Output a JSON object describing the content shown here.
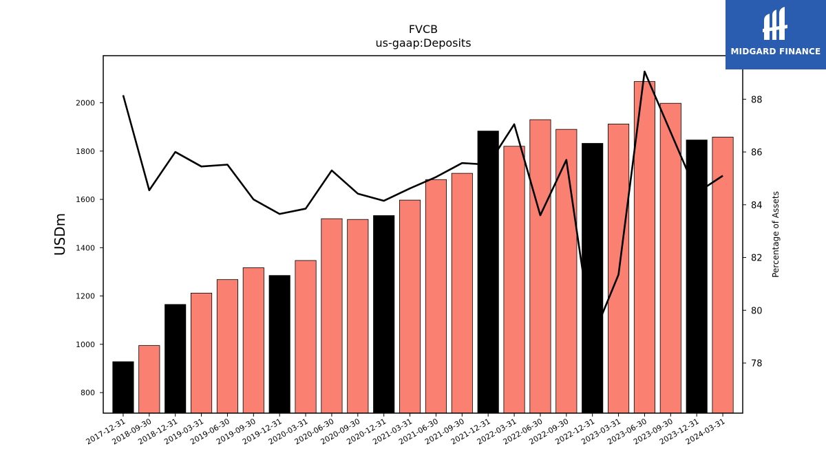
{
  "chart_data": {
    "type": "bar",
    "title": "FVCB",
    "subtitle": "us-gaap:Deposits",
    "ylabel": "USDm",
    "ylabel_right": "Percentage of Assets",
    "categories": [
      "2017-12-31",
      "2018-09-30",
      "2018-12-31",
      "2019-03-31",
      "2019-06-30",
      "2019-09-30",
      "2019-12-31",
      "2020-03-31",
      "2020-06-30",
      "2020-09-30",
      "2020-12-31",
      "2021-03-31",
      "2021-06-30",
      "2021-09-30",
      "2021-12-31",
      "2022-03-31",
      "2022-06-30",
      "2022-09-30",
      "2022-12-31",
      "2023-03-31",
      "2023-06-30",
      "2023-09-30",
      "2023-12-31",
      "2024-03-31"
    ],
    "series": [
      {
        "type": "bar",
        "axis": "left",
        "values": [
          928,
          995,
          1165,
          1212,
          1268,
          1317,
          1285,
          1347,
          1520,
          1517,
          1533,
          1597,
          1682,
          1708,
          1883,
          1820,
          1930,
          1890,
          1832,
          1912,
          2088,
          1998,
          1846,
          1858
        ],
        "colors": [
          "#000000",
          "#fa8072",
          "#000000",
          "#fa8072",
          "#fa8072",
          "#fa8072",
          "#000000",
          "#fa8072",
          "#fa8072",
          "#fa8072",
          "#000000",
          "#fa8072",
          "#fa8072",
          "#fa8072",
          "#000000",
          "#fa8072",
          "#fa8072",
          "#fa8072",
          "#000000",
          "#fa8072",
          "#fa8072",
          "#fa8072",
          "#000000",
          "#fa8072"
        ]
      },
      {
        "type": "line",
        "axis": "right",
        "color": "#000000",
        "values": [
          88.15,
          84.55,
          86.0,
          85.45,
          85.52,
          84.2,
          83.65,
          83.85,
          85.3,
          84.42,
          84.15,
          84.62,
          85.05,
          85.58,
          85.52,
          87.05,
          83.6,
          85.7,
          78.95,
          81.35,
          89.05,
          86.75,
          84.45,
          85.1
        ]
      }
    ],
    "ylim": [
      715,
      2195
    ],
    "yticks": [
      800,
      1000,
      1200,
      1400,
      1600,
      1800,
      2000
    ],
    "ylim_right": [
      76.1,
      89.65
    ],
    "yticks_right": [
      78,
      80,
      82,
      84,
      86,
      88
    ],
    "grid": false,
    "legend": "none"
  },
  "logo": {
    "text": "MIDGARD FINANCE",
    "color": "#2a5db0"
  }
}
